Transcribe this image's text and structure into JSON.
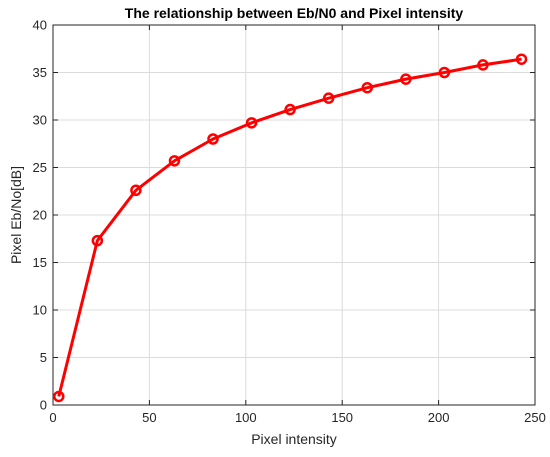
{
  "chart_data": {
    "type": "line",
    "title": "The relationship between Eb/N0 and Pixel intensity",
    "xlabel": "Pixel intensity",
    "ylabel": "Pixel Eb/No[dB]",
    "xlim": [
      0,
      250
    ],
    "ylim": [
      0,
      40
    ],
    "xticks": [
      0,
      50,
      100,
      150,
      200,
      250
    ],
    "yticks": [
      0,
      5,
      10,
      15,
      20,
      25,
      30,
      35,
      40
    ],
    "grid": true,
    "marker": "circle",
    "series": [
      {
        "color": "#ff0000",
        "x": [
          3,
          23,
          43,
          63,
          83,
          103,
          123,
          143,
          163,
          183,
          203,
          223,
          243
        ],
        "y": [
          0.9,
          17.3,
          22.6,
          25.7,
          28.0,
          29.7,
          31.1,
          32.3,
          33.4,
          34.3,
          35.0,
          35.8,
          36.4
        ]
      }
    ]
  }
}
